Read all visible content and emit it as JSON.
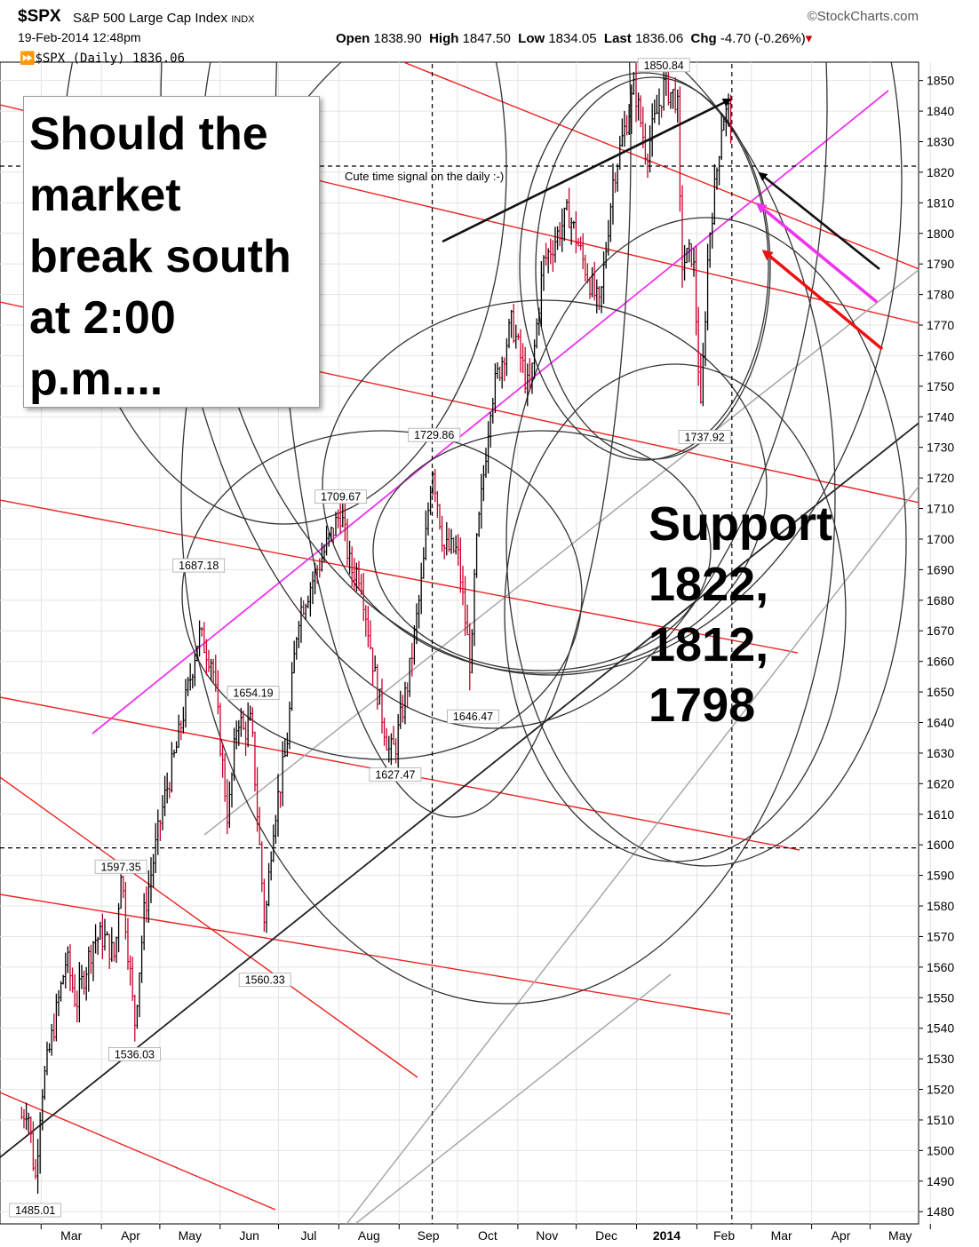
{
  "header": {
    "symbol": "$SPX",
    "index_name": "S&P 500 Large Cap Index",
    "exchange": "INDX",
    "timestamp": "19-Feb-2014 12:48pm",
    "source": "©StockCharts.com",
    "open_label": "Open",
    "open": "1838.90",
    "high_label": "High",
    "high": "1847.50",
    "low_label": "Low",
    "low": "1834.05",
    "last_label": "Last",
    "last": "1836.06",
    "chg_label": "Chg",
    "chg": "-4.70 (-0.26%)",
    "series_label": "$SPX (Daily) 1836.06"
  },
  "annotations": {
    "note": "Should the\nmarket\nbreak south\nat 2:00\np.m....",
    "support": "Support\n1822,\n1812,\n1798",
    "time_signal": "Cute time signal on the daily :-)"
  },
  "colors": {
    "up_bar": "#000000",
    "down_bar": "#c8002a",
    "pink_channel": "#ee33ee",
    "red_lines": "#ee2222",
    "grid": "#e4e4e4"
  },
  "chart_data": {
    "type": "ohlc",
    "x_tick_labels": [
      "Mar",
      "Apr",
      "May",
      "Jun",
      "Jul",
      "Aug",
      "Sep",
      "Oct",
      "Nov",
      "Dec",
      "2014",
      "Feb",
      "Mar",
      "Apr",
      "May"
    ],
    "y_ticks": [
      1480,
      1490,
      1500,
      1510,
      1520,
      1530,
      1540,
      1550,
      1560,
      1570,
      1580,
      1590,
      1600,
      1610,
      1620,
      1630,
      1640,
      1650,
      1660,
      1670,
      1680,
      1690,
      1700,
      1710,
      1720,
      1730,
      1740,
      1750,
      1760,
      1770,
      1780,
      1790,
      1800,
      1810,
      1820,
      1830,
      1840,
      1850
    ],
    "ylim": [
      1476,
      1856
    ],
    "grid": true,
    "anchors": [
      [
        "2013-02-19",
        1511
      ],
      [
        "2013-02-22",
        1515
      ],
      [
        "2013-02-26",
        1490
      ],
      [
        "2013-03-01",
        1518
      ],
      [
        "2013-03-14",
        1563
      ],
      [
        "2013-03-19",
        1548
      ],
      [
        "2013-03-28",
        1569
      ],
      [
        "2013-04-02",
        1570
      ],
      [
        "2013-04-08",
        1563
      ],
      [
        "2013-04-11",
        1593
      ],
      [
        "2013-04-18",
        1541
      ],
      [
        "2013-04-23",
        1578
      ],
      [
        "2013-05-03",
        1614
      ],
      [
        "2013-05-10",
        1633
      ],
      [
        "2013-05-21",
        1669
      ],
      [
        "2013-05-28",
        1660
      ],
      [
        "2013-06-05",
        1608
      ],
      [
        "2013-06-10",
        1643
      ],
      [
        "2013-06-13",
        1637
      ],
      [
        "2013-06-17",
        1640
      ],
      [
        "2013-06-24",
        1573
      ],
      [
        "2013-06-28",
        1606
      ],
      [
        "2013-07-05",
        1631
      ],
      [
        "2013-07-11",
        1675
      ],
      [
        "2013-07-22",
        1692
      ],
      [
        "2013-08-02",
        1709
      ],
      [
        "2013-08-07",
        1690
      ],
      [
        "2013-08-12",
        1689
      ],
      [
        "2013-08-20",
        1653
      ],
      [
        "2013-08-27",
        1630
      ],
      [
        "2013-08-30",
        1632
      ],
      [
        "2013-09-06",
        1655
      ],
      [
        "2013-09-13",
        1688
      ],
      [
        "2013-09-18",
        1725
      ],
      [
        "2013-09-24",
        1697
      ],
      [
        "2013-10-01",
        1696
      ],
      [
        "2013-10-08",
        1656
      ],
      [
        "2013-10-10",
        1692
      ],
      [
        "2013-10-18",
        1745
      ],
      [
        "2013-10-29",
        1771
      ],
      [
        "2013-11-07",
        1747
      ],
      [
        "2013-11-14",
        1790
      ],
      [
        "2013-11-27",
        1807
      ],
      [
        "2013-12-04",
        1792
      ],
      [
        "2013-12-13",
        1775
      ],
      [
        "2013-12-20",
        1818
      ],
      [
        "2013-12-31",
        1848
      ],
      [
        "2014-01-06",
        1826
      ],
      [
        "2014-01-15",
        1848
      ],
      [
        "2014-01-22",
        1844
      ],
      [
        "2014-01-24",
        1790
      ],
      [
        "2014-01-30",
        1794
      ],
      [
        "2014-02-03",
        1741
      ],
      [
        "2014-02-07",
        1797
      ],
      [
        "2014-02-11",
        1819
      ],
      [
        "2014-02-14",
        1838
      ],
      [
        "2014-02-18",
        1840
      ],
      [
        "2014-02-19",
        1836
      ]
    ],
    "labeled_points": [
      {
        "label": "1485.01",
        "date": "2013-02-26",
        "price": 1485.01
      },
      {
        "label": "1597.35",
        "date": "2013-04-11",
        "price": 1597.35
      },
      {
        "label": "1536.03",
        "date": "2013-04-18",
        "price": 1536.03
      },
      {
        "label": "1687.18",
        "date": "2013-05-21",
        "price": 1687.18
      },
      {
        "label": "1654.19",
        "date": "2013-06-18",
        "price": 1654.19
      },
      {
        "label": "1560.33",
        "date": "2013-06-24",
        "price": 1560.33
      },
      {
        "label": "1709.67",
        "date": "2013-08-02",
        "price": 1709.67
      },
      {
        "label": "1627.47",
        "date": "2013-08-30",
        "price": 1627.47
      },
      {
        "label": "1729.86",
        "date": "2013-09-19",
        "price": 1729.86
      },
      {
        "label": "1646.47",
        "date": "2013-10-09",
        "price": 1646.47
      },
      {
        "label": "1850.84",
        "date": "2014-01-15",
        "price": 1850.84
      },
      {
        "label": "1737.92",
        "date": "2014-02-05",
        "price": 1737.92
      }
    ],
    "horizontal_lines": [
      1822,
      1599
    ],
    "vertical_dates": [
      "2013-09-18",
      "2014-02-19"
    ]
  }
}
